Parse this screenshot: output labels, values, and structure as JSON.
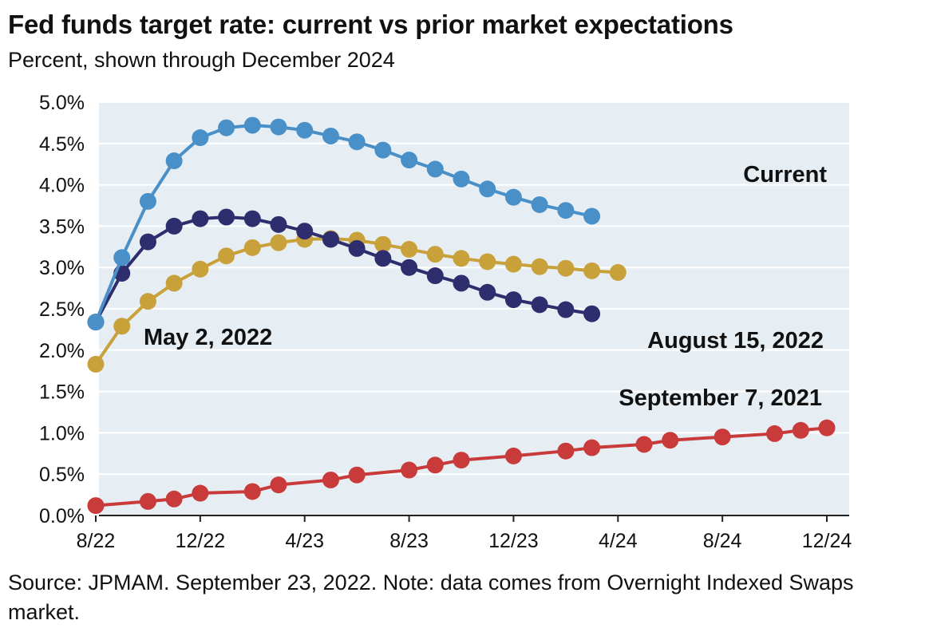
{
  "title": "Fed funds target rate: current vs prior market expectations",
  "subtitle": "Percent, shown through December 2024",
  "source": "Source: JPMAM. September 23, 2022. Note: data comes from Overnight Indexed Swaps market.",
  "chart_data": {
    "type": "line",
    "x": [
      "2022-08",
      "2022-09",
      "2022-10",
      "2022-11",
      "2022-12",
      "2023-01",
      "2023-02",
      "2023-03",
      "2023-04",
      "2023-05",
      "2023-06",
      "2023-07",
      "2023-08",
      "2023-09",
      "2023-10",
      "2023-11",
      "2023-12",
      "2024-01",
      "2024-02",
      "2024-03",
      "2024-04",
      "2024-05",
      "2024-06",
      "2024-07",
      "2024-08",
      "2024-09",
      "2024-10",
      "2024-11",
      "2024-12"
    ],
    "ylim": [
      0,
      5
    ],
    "yticks": [
      "0.0%",
      "0.5%",
      "1.0%",
      "1.5%",
      "2.0%",
      "2.5%",
      "3.0%",
      "3.5%",
      "4.0%",
      "4.5%",
      "5.0%"
    ],
    "xticks": [
      {
        "label": "8/22",
        "x": "2022-08"
      },
      {
        "label": "12/22",
        "x": "2022-12"
      },
      {
        "label": "4/23",
        "x": "2023-04"
      },
      {
        "label": "8/23",
        "x": "2023-08"
      },
      {
        "label": "12/23",
        "x": "2023-12"
      },
      {
        "label": "4/24",
        "x": "2024-04"
      },
      {
        "label": "8/24",
        "x": "2024-08"
      },
      {
        "label": "12/24",
        "x": "2024-12"
      }
    ],
    "grid": true,
    "series": [
      {
        "name": "September 7, 2021",
        "color": "#c93a3a",
        "points": [
          [
            "2022-08",
            0.12
          ],
          [
            "2022-10",
            0.17
          ],
          [
            "2022-11",
            0.2
          ],
          [
            "2022-12",
            0.27
          ],
          [
            "2023-02",
            0.29
          ],
          [
            "2023-03",
            0.37
          ],
          [
            "2023-05",
            0.43
          ],
          [
            "2023-06",
            0.49
          ],
          [
            "2023-08",
            0.55
          ],
          [
            "2023-09",
            0.61
          ],
          [
            "2023-10",
            0.67
          ],
          [
            "2023-12",
            0.72
          ],
          [
            "2024-02",
            0.78
          ],
          [
            "2024-03",
            0.82
          ],
          [
            "2024-05",
            0.86
          ],
          [
            "2024-06",
            0.91
          ],
          [
            "2024-08",
            0.95
          ],
          [
            "2024-10",
            0.99
          ],
          [
            "2024-11",
            1.03
          ],
          [
            "2024-12",
            1.06
          ]
        ]
      },
      {
        "name": "May 2, 2022",
        "color": "#c9a13a",
        "points": [
          [
            "2022-08",
            1.83
          ],
          [
            "2022-09",
            2.29
          ],
          [
            "2022-10",
            2.59
          ],
          [
            "2022-11",
            2.81
          ],
          [
            "2022-12",
            2.98
          ],
          [
            "2023-01",
            3.14
          ],
          [
            "2023-02",
            3.24
          ],
          [
            "2023-03",
            3.3
          ],
          [
            "2023-04",
            3.34
          ],
          [
            "2023-05",
            3.35
          ],
          [
            "2023-06",
            3.33
          ],
          [
            "2023-07",
            3.28
          ],
          [
            "2023-08",
            3.22
          ],
          [
            "2023-09",
            3.16
          ],
          [
            "2023-10",
            3.11
          ],
          [
            "2023-11",
            3.07
          ],
          [
            "2023-12",
            3.04
          ],
          [
            "2024-01",
            3.01
          ],
          [
            "2024-02",
            2.99
          ],
          [
            "2024-03",
            2.96
          ],
          [
            "2024-04",
            2.94
          ]
        ]
      },
      {
        "name": "August 15, 2022",
        "color": "#2e2d6e",
        "points": [
          [
            "2022-08",
            2.34
          ],
          [
            "2022-09",
            2.93
          ],
          [
            "2022-10",
            3.31
          ],
          [
            "2022-11",
            3.5
          ],
          [
            "2022-12",
            3.59
          ],
          [
            "2023-01",
            3.61
          ],
          [
            "2023-02",
            3.59
          ],
          [
            "2023-03",
            3.52
          ],
          [
            "2023-04",
            3.44
          ],
          [
            "2023-05",
            3.34
          ],
          [
            "2023-06",
            3.23
          ],
          [
            "2023-07",
            3.11
          ],
          [
            "2023-08",
            3.0
          ],
          [
            "2023-09",
            2.9
          ],
          [
            "2023-10",
            2.81
          ],
          [
            "2023-11",
            2.7
          ],
          [
            "2023-12",
            2.61
          ],
          [
            "2024-01",
            2.55
          ],
          [
            "2024-02",
            2.49
          ],
          [
            "2024-03",
            2.44
          ]
        ]
      },
      {
        "name": "Current",
        "color": "#4a90c8",
        "points": [
          [
            "2022-08",
            2.34
          ],
          [
            "2022-09",
            3.12
          ],
          [
            "2022-10",
            3.8
          ],
          [
            "2022-11",
            4.29
          ],
          [
            "2022-12",
            4.57
          ],
          [
            "2023-01",
            4.69
          ],
          [
            "2023-02",
            4.72
          ],
          [
            "2023-03",
            4.7
          ],
          [
            "2023-04",
            4.66
          ],
          [
            "2023-05",
            4.59
          ],
          [
            "2023-06",
            4.52
          ],
          [
            "2023-07",
            4.42
          ],
          [
            "2023-08",
            4.3
          ],
          [
            "2023-09",
            4.19
          ],
          [
            "2023-10",
            4.07
          ],
          [
            "2023-11",
            3.95
          ],
          [
            "2023-12",
            3.85
          ],
          [
            "2024-01",
            3.76
          ],
          [
            "2024-02",
            3.69
          ],
          [
            "2024-03",
            3.62
          ]
        ]
      }
    ],
    "labels": [
      "Current",
      "May 2, 2022",
      "August 15, 2022",
      "September 7, 2021"
    ]
  }
}
